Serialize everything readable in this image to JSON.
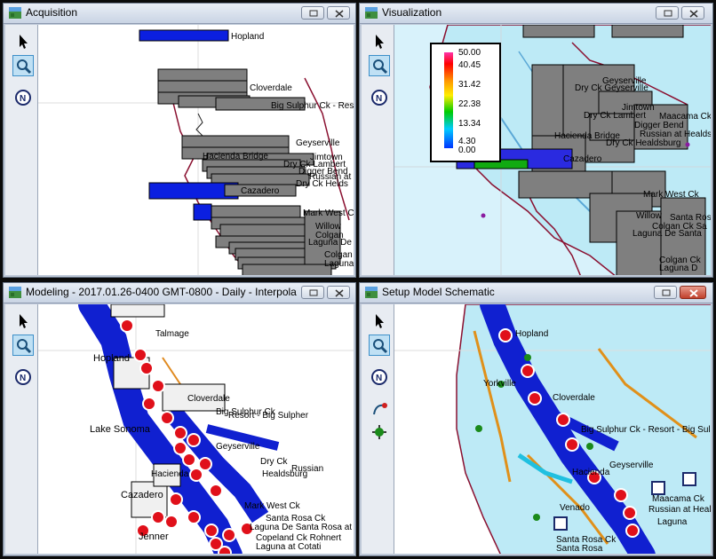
{
  "windows": {
    "acquisition": {
      "title": "Acquisition",
      "labels": [
        "Hopland",
        "Cloverdale",
        "Big Sulphur Ck - Resort",
        "Geyserville",
        "Hacienda Bridge",
        "Jimtown",
        "Dry Ck Lambert",
        "Digger Bend",
        "Russian at",
        "Dry Ck Helds",
        "Cazadero",
        "Mark West Ck",
        "Willow",
        "Colgan",
        "Laguna De",
        "Colgan",
        "Laguna"
      ]
    },
    "visualization": {
      "title": "Visualization",
      "legend": [
        "50.00",
        "40.45",
        "31.42",
        "22.38",
        "13.34",
        "4.30",
        "0.00"
      ],
      "labels": [
        "Geyserville",
        "Dry Ck Geyserville",
        "Jimtown",
        "Dry Ck Lambert",
        "Maacama Ck",
        "Digger Bend",
        "Russian at Healdsbu",
        "Hacienda Bridge",
        "Dry Ck Healdsburg",
        "Cazadero",
        "Mark West Ck",
        "Willow",
        "Santa Rosa",
        "Colgan Ck Sa",
        "Laguna De Santa",
        "Colgan Ck",
        "Laguna D"
      ]
    },
    "modeling": {
      "title": "Modeling - 2017.01.26-0400 GMT-0800 - Daily - Interpola...",
      "labels": [
        "Talmage",
        "Hopland",
        "Cloverdale",
        "Big Sulphur Ck",
        "Resort - Big Sulpher",
        "Lake Sonoma",
        "Geyserville",
        "Dry Ck",
        "Russian",
        "Healdsburg",
        "Hacienda",
        "Cazadero",
        "Jenner",
        "Mark West Ck",
        "Santa Rosa Ck",
        "Laguna De Santa Rosa at",
        "Copeland Ck Rohnert",
        "Laguna at Cotati"
      ]
    },
    "setup": {
      "title": "Setup Model Schematic",
      "labels": [
        "Hopland",
        "Yorkville",
        "Cloverdale",
        "Big Sulphur Ck - Resort - Big Sul",
        "Geyserville",
        "Hacienda",
        "Venado",
        "Maacama Ck",
        "Russian at Healdsburg",
        "Laguna",
        "Santa Rosa Ck",
        "Santa Rosa"
      ]
    }
  },
  "tools": [
    "pointer-tool",
    "zoom-tool",
    "north-tool",
    "draw-tool",
    "node-tool"
  ]
}
